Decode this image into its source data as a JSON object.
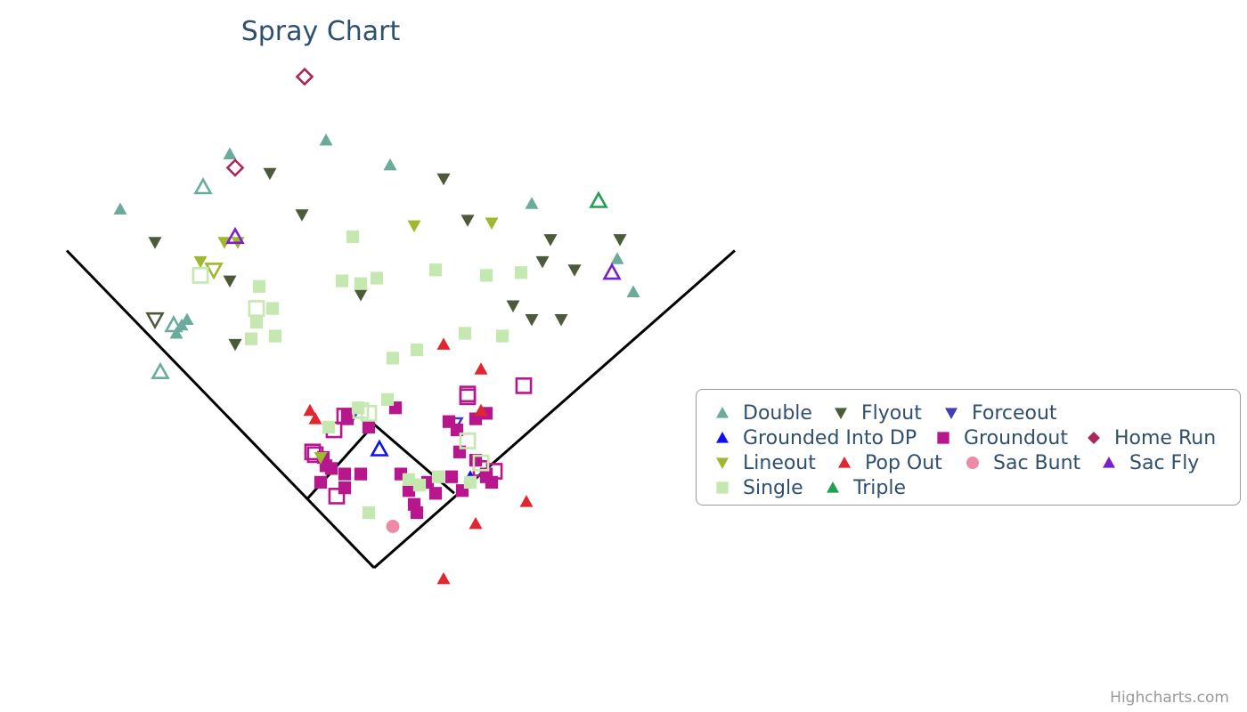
{
  "chart_data": {
    "type": "scatter",
    "title": "Spray Chart",
    "credits": "Highcharts.com",
    "xlim": [
      -125,
      125
    ],
    "ylim": [
      -5,
      250
    ],
    "field_lines": [
      {
        "name": "left-foul-line",
        "points": [
          [
            0,
            0
          ],
          [
            -115,
            115
          ]
        ]
      },
      {
        "name": "right-foul-line",
        "points": [
          [
            0,
            0
          ],
          [
            135,
            115
          ]
        ]
      },
      {
        "name": "infield-diamond",
        "points": [
          [
            -25,
            25
          ],
          [
            0,
            52
          ],
          [
            30,
            27
          ]
        ]
      }
    ],
    "series": [
      {
        "name": "Double",
        "color": "#6aab9c",
        "symbol": "triangle",
        "points": [
          [
            -54,
            150
          ],
          [
            -18,
            155
          ],
          [
            6,
            146
          ],
          [
            -95,
            130
          ],
          [
            59,
            132
          ],
          [
            91,
            112
          ],
          [
            97,
            100
          ],
          [
            -70,
            90
          ],
          [
            -74,
            85
          ],
          [
            -72,
            88
          ]
        ],
        "hollow": [
          [
            -64,
            138
          ],
          [
            -80,
            71
          ],
          [
            -75,
            88
          ]
        ]
      },
      {
        "name": "Flyout",
        "color": "#4d5a3a",
        "symbol": "triangle-down",
        "points": [
          [
            -39,
            143
          ],
          [
            26,
            141
          ],
          [
            -27,
            128
          ],
          [
            35,
            126
          ],
          [
            -82,
            118
          ],
          [
            66,
            119
          ],
          [
            92,
            119
          ],
          [
            -5,
            99
          ],
          [
            63,
            111
          ],
          [
            75,
            108
          ],
          [
            52,
            95
          ],
          [
            -54,
            104
          ],
          [
            -52,
            81
          ],
          [
            59,
            90
          ],
          [
            70,
            90
          ]
        ],
        "hollow": [
          [
            -82,
            90
          ]
        ]
      },
      {
        "name": "Forceout",
        "color": "#4040b0",
        "symbol": "triangle-down",
        "points": [
          [
            -8,
            55
          ]
        ],
        "hollow": [
          [
            30,
            52
          ]
        ]
      },
      {
        "name": "Grounded Into DP",
        "color": "#1010f0",
        "symbol": "triangle",
        "points": [
          [
            36,
            33
          ]
        ],
        "hollow": [
          [
            2,
            43
          ]
        ]
      },
      {
        "name": "Groundout",
        "color": "#b8168c",
        "symbol": "square",
        "points": [
          [
            -10,
            55
          ],
          [
            8,
            58
          ],
          [
            28,
            53
          ],
          [
            31,
            50
          ],
          [
            38,
            54
          ],
          [
            42,
            56
          ],
          [
            -2,
            51
          ],
          [
            -10,
            54
          ],
          [
            -18,
            37
          ],
          [
            -16,
            36
          ],
          [
            -11,
            34
          ],
          [
            -5,
            34
          ],
          [
            10,
            34
          ],
          [
            13,
            28
          ],
          [
            14,
            30
          ],
          [
            20,
            31
          ],
          [
            23,
            27
          ],
          [
            29,
            33
          ],
          [
            32,
            42
          ],
          [
            42,
            34
          ],
          [
            33,
            28
          ],
          [
            44,
            31
          ],
          [
            38,
            39
          ],
          [
            42,
            33
          ],
          [
            15,
            23
          ],
          [
            16,
            20
          ],
          [
            -20,
            31
          ],
          [
            -11,
            29
          ],
          [
            -19,
            40
          ]
        ],
        "hollow": [
          [
            -11,
            55
          ],
          [
            -15,
            50
          ],
          [
            35,
            62
          ],
          [
            56,
            66
          ],
          [
            35,
            63
          ],
          [
            40,
            36
          ],
          [
            45,
            35
          ],
          [
            -22,
            41
          ],
          [
            -14,
            26
          ],
          [
            -23,
            42
          ]
        ]
      },
      {
        "name": "Home Run",
        "color": "#a8285c",
        "symbol": "diamond",
        "points": [],
        "hollow": [
          [
            -26,
            178
          ],
          [
            -52,
            145
          ]
        ]
      },
      {
        "name": "Lineout",
        "color": "#9eb830",
        "symbol": "triangle-down",
        "points": [
          [
            15,
            124
          ],
          [
            44,
            125
          ],
          [
            -56,
            118
          ],
          [
            -65,
            111
          ],
          [
            -51,
            118
          ],
          [
            -20,
            40
          ]
        ],
        "hollow": [
          [
            -60,
            108
          ]
        ]
      },
      {
        "name": "Pop Out",
        "color": "#e0262e",
        "symbol": "triangle",
        "points": [
          [
            26,
            81
          ],
          [
            40,
            72
          ],
          [
            -24,
            57
          ],
          [
            40,
            57
          ],
          [
            -22,
            54
          ],
          [
            57,
            24
          ],
          [
            38,
            16
          ],
          [
            26,
            -4
          ]
        ],
        "hollow": []
      },
      {
        "name": "Sac Bunt",
        "color": "#ef8aa6",
        "symbol": "circle",
        "points": [
          [
            7,
            15
          ]
        ],
        "hollow": []
      },
      {
        "name": "Sac Fly",
        "color": "#7a1fc8",
        "symbol": "triangle",
        "points": [],
        "hollow": [
          [
            -52,
            120
          ],
          [
            89,
            107
          ]
        ]
      },
      {
        "name": "Single",
        "color": "#c4e8b0",
        "symbol": "square",
        "points": [
          [
            -8,
            120
          ],
          [
            -12,
            104
          ],
          [
            -5,
            103
          ],
          [
            1,
            105
          ],
          [
            23,
            108
          ],
          [
            42,
            106
          ],
          [
            55,
            107
          ],
          [
            -43,
            102
          ],
          [
            -38,
            94
          ],
          [
            -44,
            89
          ],
          [
            -37,
            84
          ],
          [
            16,
            79
          ],
          [
            48,
            84
          ],
          [
            7,
            76
          ],
          [
            34,
            85
          ],
          [
            -46,
            83
          ],
          [
            5,
            61
          ],
          [
            -17,
            51
          ],
          [
            13,
            32
          ],
          [
            17,
            30
          ],
          [
            -2,
            20
          ],
          [
            24,
            33
          ],
          [
            36,
            31
          ],
          [
            -6,
            58
          ]
        ],
        "hollow": [
          [
            -65,
            106
          ],
          [
            -44,
            94
          ],
          [
            -2,
            56
          ],
          [
            -5,
            57
          ],
          [
            35,
            46
          ],
          [
            40,
            38
          ]
        ]
      },
      {
        "name": "Triple",
        "color": "#20a050",
        "symbol": "triangle",
        "points": [],
        "hollow": [
          [
            84,
            133
          ]
        ]
      }
    ]
  }
}
